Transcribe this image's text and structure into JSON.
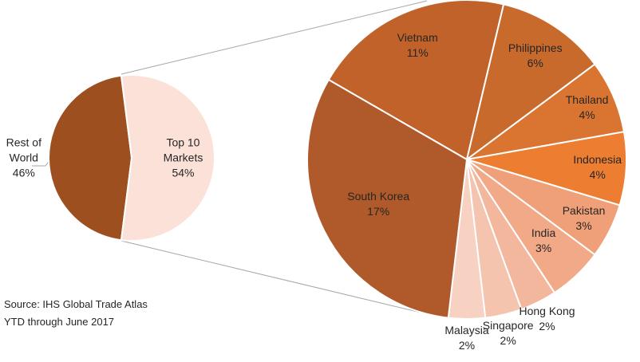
{
  "chart_data": [
    {
      "type": "pie",
      "categories": [
        "Rest of World",
        "Top 10 Markets"
      ],
      "values": [
        46,
        54
      ],
      "value_labels": [
        "46%",
        "54%"
      ],
      "colors": [
        "#9e4f1f",
        "#fbe1d7"
      ]
    },
    {
      "type": "pie",
      "categories": [
        "Vietnam",
        "Philippines",
        "Thailand",
        "Indonesia",
        "Pakistan",
        "India",
        "Hong Kong",
        "Singapore",
        "Malaysia",
        "South Korea"
      ],
      "values": [
        11,
        6,
        4,
        4,
        3,
        3,
        2,
        2,
        2,
        17
      ],
      "value_labels": [
        "11%",
        "6%",
        "4%",
        "4%",
        "3%",
        "3%",
        "2%",
        "2%",
        "2%",
        "17%"
      ],
      "colors": [
        "#c0622a",
        "#c96a2d",
        "#d97530",
        "#ec7d31",
        "#f0a078",
        "#f1a988",
        "#f2b79d",
        "#f4c4af",
        "#f7d1c1",
        "#b0592a"
      ]
    }
  ],
  "annotations": [
    "Source: IHS Global Trade Atlas",
    "YTD through June 2017"
  ]
}
